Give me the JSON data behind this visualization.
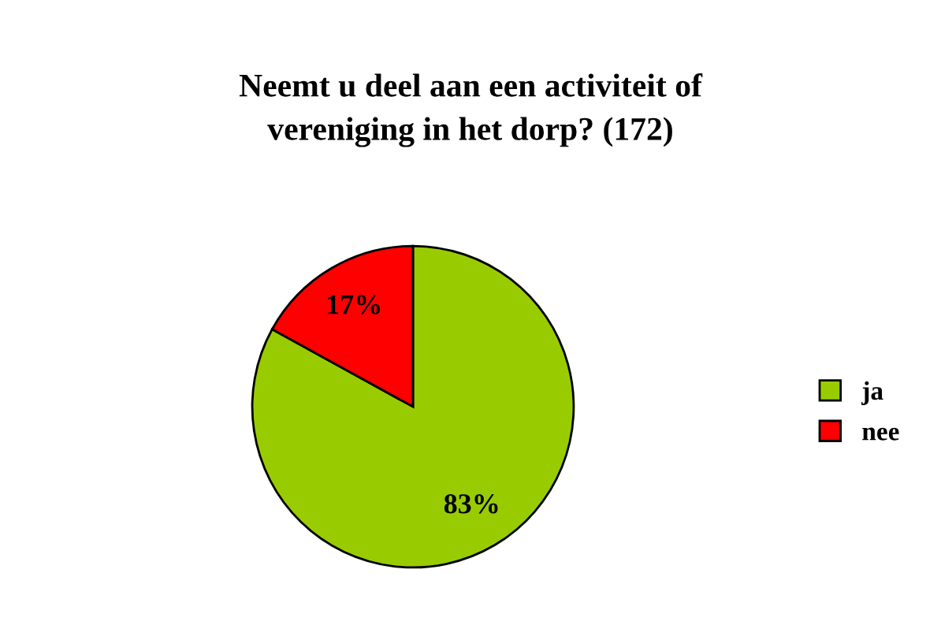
{
  "chart_data": {
    "type": "pie",
    "title": "Neemt u deel aan een activiteit of\nvereniging in het dorp? (172)",
    "categories": [
      "ja",
      "nee"
    ],
    "values": [
      83,
      17
    ],
    "colors": [
      "#99cc00",
      "#ff0000"
    ],
    "value_labels": [
      "83%",
      "17%"
    ],
    "legend": "right"
  }
}
